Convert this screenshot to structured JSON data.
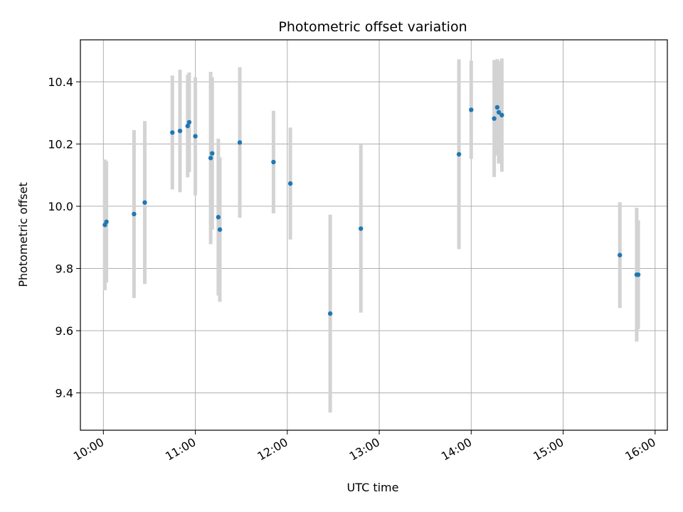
{
  "chart_data": {
    "type": "scatter",
    "title": "Photometric offset variation",
    "xlabel": "UTC time",
    "ylabel": "Photometric offset",
    "xlim": [
      "09:45",
      "16:08"
    ],
    "ylim": [
      9.28,
      10.535
    ],
    "x_ticks": [
      "10:00",
      "11:00",
      "12:00",
      "13:00",
      "14:00",
      "15:00",
      "16:00"
    ],
    "y_ticks": [
      "9.4",
      "9.6",
      "9.8",
      "10.0",
      "10.2",
      "10.4"
    ],
    "grid": true,
    "colors": {
      "point": "#1f77b4",
      "errorbar": "#d3d3d3",
      "grid": "#b0b0b0"
    },
    "series": [
      {
        "points": [
          {
            "x": "10:01",
            "y": 9.94,
            "err": 0.21
          },
          {
            "x": "10:02",
            "y": 9.95,
            "err": 0.195
          },
          {
            "x": "10:20",
            "y": 9.975,
            "err": 0.27
          },
          {
            "x": "10:27",
            "y": 10.012,
            "err": 0.262
          },
          {
            "x": "10:45",
            "y": 10.237,
            "err": 0.183
          },
          {
            "x": "10:50",
            "y": 10.242,
            "err": 0.197
          },
          {
            "x": "10:55",
            "y": 10.258,
            "err": 0.165
          },
          {
            "x": "10:56",
            "y": 10.27,
            "err": 0.16
          },
          {
            "x": "11:00",
            "y": 10.225,
            "err": 0.19
          },
          {
            "x": "11:10",
            "y": 10.155,
            "err": 0.277
          },
          {
            "x": "11:11",
            "y": 10.17,
            "err": 0.245
          },
          {
            "x": "11:15",
            "y": 9.965,
            "err": 0.252
          },
          {
            "x": "11:16",
            "y": 9.925,
            "err": 0.232
          },
          {
            "x": "11:29",
            "y": 10.205,
            "err": 0.242
          },
          {
            "x": "11:51",
            "y": 10.142,
            "err": 0.165
          },
          {
            "x": "12:02",
            "y": 10.073,
            "err": 0.18
          },
          {
            "x": "12:28",
            "y": 9.655,
            "err": 0.318
          },
          {
            "x": "12:48",
            "y": 9.928,
            "err": 0.27
          },
          {
            "x": "13:52",
            "y": 10.167,
            "err": 0.305
          },
          {
            "x": "14:00",
            "y": 10.31,
            "err": 0.158
          },
          {
            "x": "14:15",
            "y": 10.282,
            "err": 0.188
          },
          {
            "x": "14:17",
            "y": 10.318,
            "err": 0.155
          },
          {
            "x": "14:18",
            "y": 10.302,
            "err": 0.165
          },
          {
            "x": "14:20",
            "y": 10.293,
            "err": 0.182
          },
          {
            "x": "15:37",
            "y": 9.843,
            "err": 0.17
          },
          {
            "x": "15:48",
            "y": 9.78,
            "err": 0.215
          },
          {
            "x": "15:49",
            "y": 9.78,
            "err": 0.175
          }
        ]
      }
    ]
  }
}
